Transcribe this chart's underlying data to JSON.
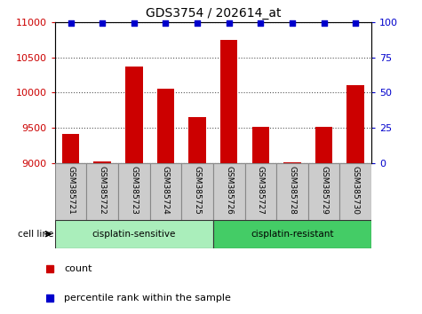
{
  "title": "GDS3754 / 202614_at",
  "samples": [
    "GSM385721",
    "GSM385722",
    "GSM385723",
    "GSM385724",
    "GSM385725",
    "GSM385726",
    "GSM385727",
    "GSM385728",
    "GSM385729",
    "GSM385730"
  ],
  "counts": [
    9420,
    9030,
    10370,
    10060,
    9660,
    10750,
    9510,
    9010,
    9520,
    10100
  ],
  "percentile_ranks": [
    99,
    99,
    99,
    99,
    99,
    99,
    99,
    99,
    99,
    99
  ],
  "groups": [
    "cisplatin-sensitive",
    "cisplatin-sensitive",
    "cisplatin-sensitive",
    "cisplatin-sensitive",
    "cisplatin-sensitive",
    "cisplatin-resistant",
    "cisplatin-resistant",
    "cisplatin-resistant",
    "cisplatin-resistant",
    "cisplatin-resistant"
  ],
  "group_colors": {
    "cisplatin-sensitive": "#AAEEBB",
    "cisplatin-resistant": "#44CC66"
  },
  "bar_color": "#CC0000",
  "dot_color": "#0000CC",
  "ylim_left": [
    9000,
    11000
  ],
  "ylim_right": [
    0,
    100
  ],
  "yticks_left": [
    9000,
    9500,
    10000,
    10500,
    11000
  ],
  "yticks_right": [
    0,
    25,
    50,
    75,
    100
  ],
  "left_tick_color": "#CC0000",
  "right_tick_color": "#0000CC",
  "grid_color": "#555555",
  "bar_width": 0.55,
  "cell_line_label": "cell line",
  "legend_count": "count",
  "legend_pct": "percentile rank within the sample",
  "sample_box_color": "#CCCCCC",
  "sample_box_edge": "#888888"
}
